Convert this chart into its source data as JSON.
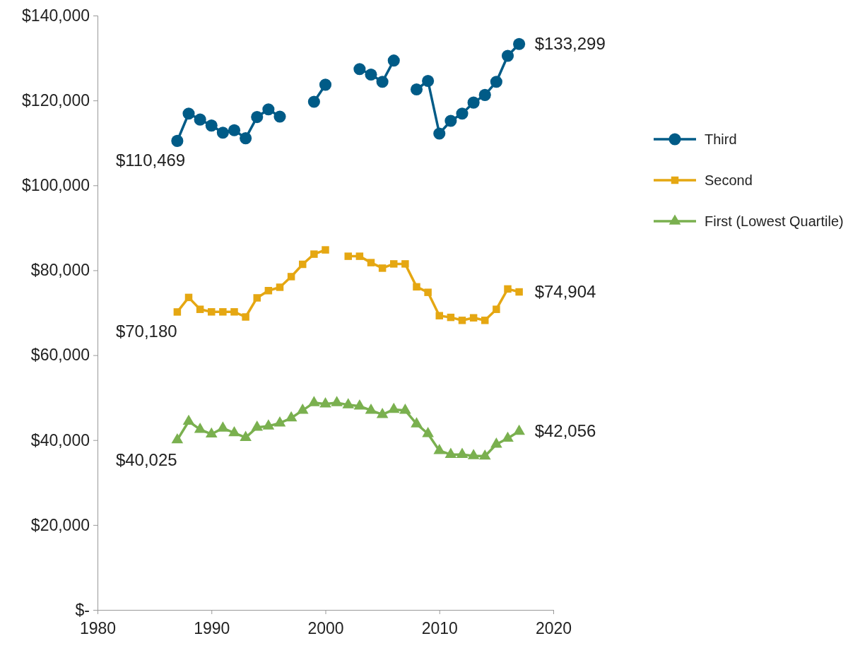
{
  "chart_data": {
    "type": "line",
    "x": [
      1987,
      1988,
      1989,
      1990,
      1991,
      1992,
      1993,
      1994,
      1995,
      1996,
      1997,
      1998,
      1999,
      2000,
      2001,
      2002,
      2003,
      2004,
      2005,
      2006,
      2007,
      2008,
      2009,
      2010,
      2011,
      2012,
      2013,
      2014,
      2015,
      2016,
      2017
    ],
    "series": [
      {
        "name": "Third",
        "color": "#005b87",
        "marker": "circle",
        "value_labels": [
          "$110,469",
          null,
          null,
          null,
          null,
          null,
          null,
          null,
          null,
          null,
          null,
          null,
          null,
          null,
          null,
          null,
          null,
          null,
          null,
          null,
          null,
          null,
          null,
          null,
          null,
          null,
          null,
          null,
          null,
          null,
          "$133,299"
        ],
        "values": [
          110469,
          116900,
          115500,
          114100,
          112400,
          113000,
          111100,
          116100,
          117900,
          116200,
          null,
          null,
          119700,
          123700,
          null,
          null,
          127400,
          126100,
          124400,
          129400,
          null,
          122600,
          124600,
          112200,
          115200,
          116900,
          119500,
          121300,
          124400,
          130500,
          133299
        ]
      },
      {
        "name": "Second",
        "color": "#e5a712",
        "marker": "square",
        "value_labels": [
          "$70,180",
          null,
          null,
          null,
          null,
          null,
          null,
          null,
          null,
          null,
          null,
          null,
          null,
          null,
          null,
          null,
          null,
          null,
          null,
          null,
          null,
          null,
          null,
          null,
          null,
          null,
          null,
          null,
          null,
          null,
          "$74,904"
        ],
        "values": [
          70180,
          73600,
          70800,
          70200,
          70200,
          70200,
          69000,
          73500,
          75200,
          76000,
          78500,
          81400,
          83800,
          84800,
          null,
          83300,
          83300,
          81800,
          80500,
          81500,
          81500,
          76100,
          74800,
          69300,
          68900,
          68200,
          68800,
          68200,
          70800,
          75600,
          74904
        ]
      },
      {
        "name": "First (Lowest Quartile)",
        "color": "#7ab04f",
        "marker": "triangle",
        "value_labels": [
          "$40,025",
          null,
          null,
          null,
          null,
          null,
          null,
          null,
          null,
          null,
          null,
          null,
          null,
          null,
          null,
          null,
          null,
          null,
          null,
          null,
          null,
          null,
          null,
          null,
          null,
          null,
          null,
          null,
          null,
          null,
          "$42,056"
        ],
        "values": [
          40025,
          44400,
          42500,
          41400,
          42800,
          41700,
          40600,
          43000,
          43300,
          44000,
          45200,
          47000,
          48800,
          48500,
          48800,
          48300,
          48000,
          47000,
          46000,
          47200,
          47000,
          43800,
          41500,
          37500,
          36600,
          36600,
          36300,
          36200,
          39000,
          40400,
          42056
        ]
      }
    ],
    "xlim": [
      1980,
      2020
    ],
    "xticks": [
      1980,
      1990,
      2000,
      2010,
      2020
    ],
    "ylim": [
      0,
      140000
    ],
    "yticks": [
      {
        "value": 0,
        "label": "$-"
      },
      {
        "value": 20000,
        "label": "$20,000"
      },
      {
        "value": 40000,
        "label": "$40,000"
      },
      {
        "value": 60000,
        "label": "$60,000"
      },
      {
        "value": 80000,
        "label": "$80,000"
      },
      {
        "value": 100000,
        "label": "$100,000"
      },
      {
        "value": 120000,
        "label": "$120,000"
      },
      {
        "value": 140000,
        "label": "$140,000"
      }
    ],
    "legend": "right",
    "line_style": "solid"
  }
}
